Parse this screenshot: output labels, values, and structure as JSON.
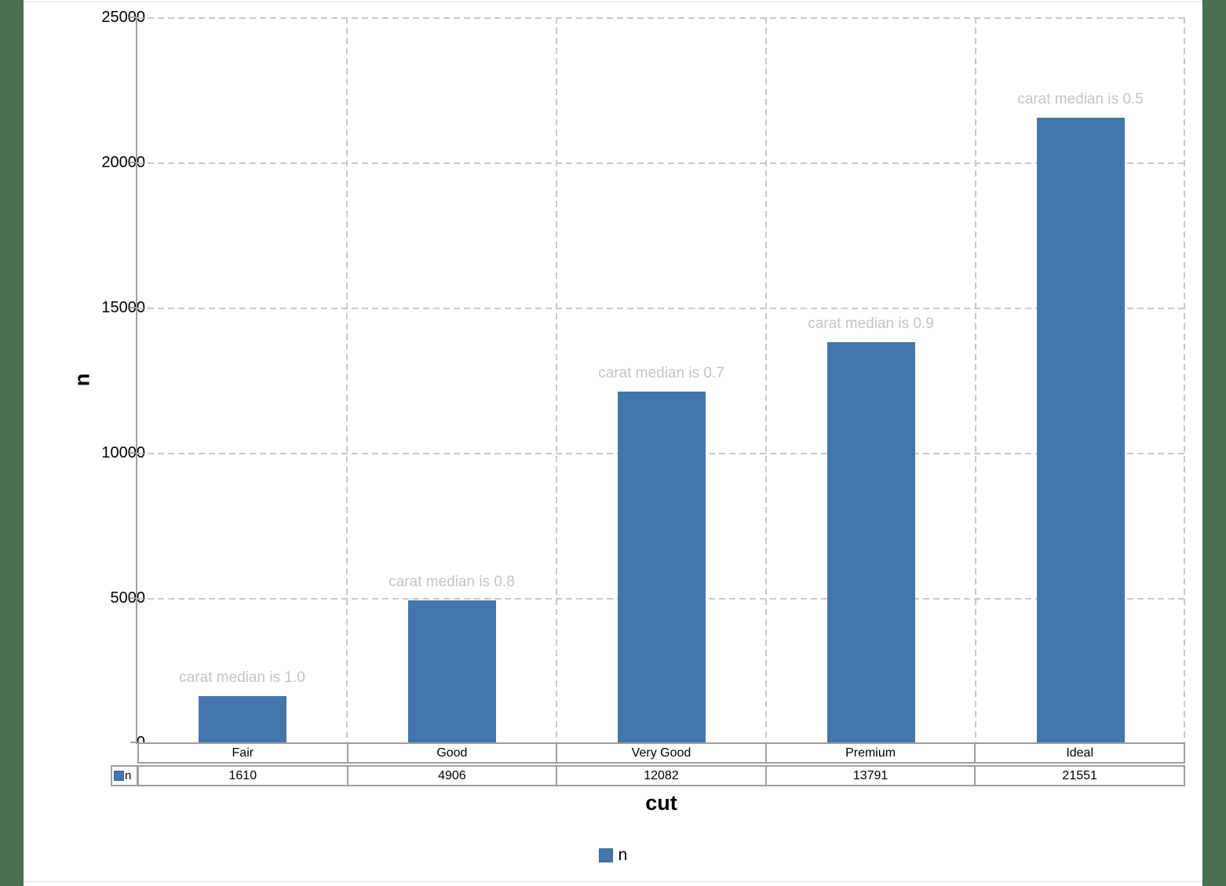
{
  "chart_data": {
    "type": "bar",
    "categories": [
      "Fair",
      "Good",
      "Very Good",
      "Premium",
      "Ideal"
    ],
    "values": [
      1610,
      4906,
      12082,
      13791,
      21551
    ],
    "series": [
      {
        "name": "n",
        "values": [
          1610,
          4906,
          12082,
          13791,
          21551
        ]
      }
    ],
    "series_name": "n",
    "annotations": [
      "carat median is 1.0",
      "carat median is 0.8",
      "carat median is 0.7",
      "carat median is 0.9",
      "carat median is 0.5"
    ],
    "title": "",
    "xlabel": "cut",
    "ylabel": "n",
    "ylim": [
      0,
      25000
    ],
    "ytick_interval": 5000,
    "ytick_labels": [
      "25000",
      "20000",
      "15000",
      "10000",
      "5000",
      "0"
    ],
    "grid": "dashed, horizontal and vertical",
    "legend_position": "bottom",
    "data_table_shown": true
  },
  "legend": {
    "label": "n",
    "swatch": "blue-square-icon"
  },
  "data_table": {
    "key_label": "n"
  },
  "colors": {
    "bar": "#4377AB",
    "annotation_text": "#c4c4c4",
    "gridline": "#c9c9c9",
    "axis": "#a0a0a0",
    "table_border": "#9e9e9e",
    "page_border": "#4A7050",
    "chart_background": "#ffffff"
  }
}
